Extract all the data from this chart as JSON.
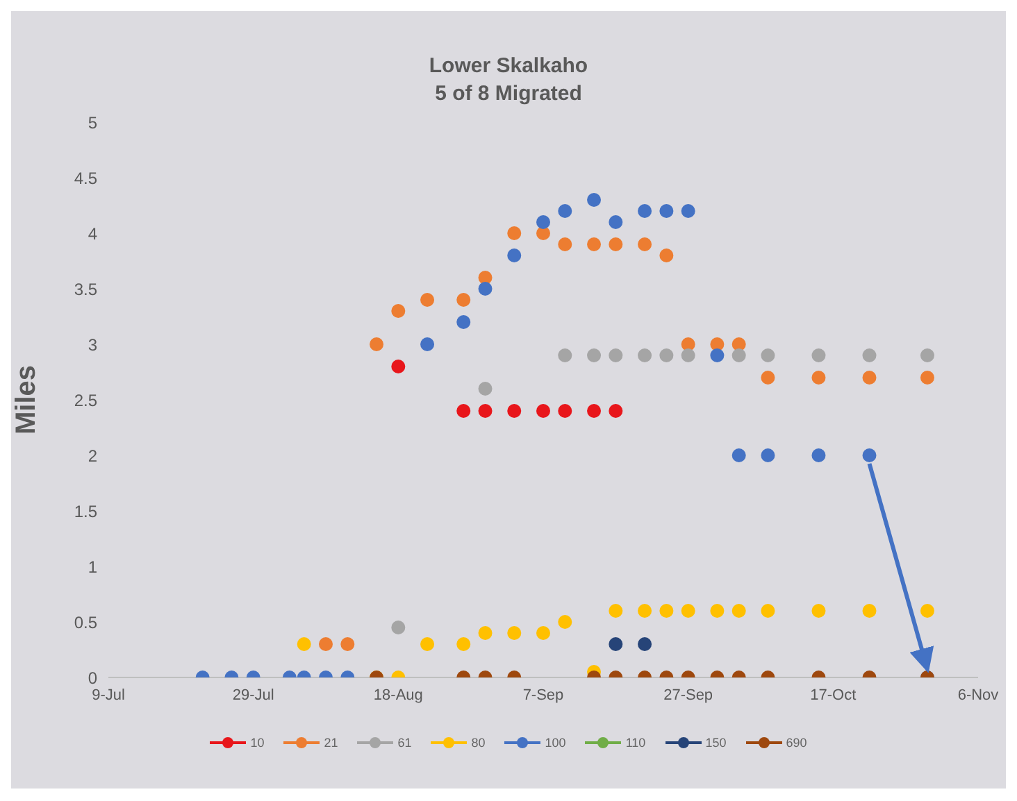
{
  "chart_data": {
    "type": "scatter",
    "title": "Lower Skalkaho",
    "subtitle": "5 of 8 Migrated",
    "ylabel": "Miles",
    "xlim": [
      "--07-09",
      "--11-06"
    ],
    "xticks": [
      {
        "value": "--07-09",
        "label": "9-Jul"
      },
      {
        "value": "--07-29",
        "label": "29-Jul"
      },
      {
        "value": "--08-18",
        "label": "18-Aug"
      },
      {
        "value": "--09-07",
        "label": "7-Sep"
      },
      {
        "value": "--09-27",
        "label": "27-Sep"
      },
      {
        "value": "--10-17",
        "label": "17-Oct"
      },
      {
        "value": "--11-06",
        "label": "6-Nov"
      }
    ],
    "ylim": [
      0,
      5
    ],
    "yticks": [
      0,
      0.5,
      1,
      1.5,
      2,
      2.5,
      3,
      3.5,
      4,
      4.5,
      5
    ],
    "grid": false,
    "legend": "bottom",
    "marker": "circle",
    "series": [
      {
        "name": "10",
        "color": "#e8161b",
        "x": [
          "--08-18",
          "--08-27",
          "--08-30",
          "--09-03",
          "--09-07",
          "--09-10",
          "--09-14",
          "--09-17"
        ],
        "values": [
          2.8,
          2.4,
          2.4,
          2.4,
          2.4,
          2.4,
          2.4,
          2.4
        ]
      },
      {
        "name": "21",
        "color": "#ed7d31",
        "x": [
          "--08-08",
          "--08-11",
          "--08-15",
          "--08-18",
          "--08-22",
          "--08-27",
          "--08-30",
          "--09-03",
          "--09-07",
          "--09-10",
          "--09-14",
          "--09-17",
          "--09-21",
          "--09-24",
          "--09-27",
          "--10-01",
          "--10-04",
          "--10-08",
          "--10-15",
          "--10-22",
          "--10-30"
        ],
        "values": [
          0.3,
          0.3,
          3.0,
          3.3,
          3.4,
          3.4,
          3.6,
          4.0,
          4.0,
          3.9,
          3.9,
          3.9,
          3.9,
          3.8,
          3.0,
          3.0,
          3.0,
          2.7,
          2.7,
          2.7,
          2.7
        ]
      },
      {
        "name": "61",
        "color": "#a5a5a5",
        "x": [
          "--08-18",
          "--08-30",
          "--09-10",
          "--09-14",
          "--09-17",
          "--09-21",
          "--09-24",
          "--09-27",
          "--10-04",
          "--10-08",
          "--10-15",
          "--10-22",
          "--10-30"
        ],
        "values": [
          0.45,
          2.6,
          2.9,
          2.9,
          2.9,
          2.9,
          2.9,
          2.9,
          2.9,
          2.9,
          2.9,
          2.9,
          2.9
        ]
      },
      {
        "name": "80",
        "color": "#ffc000",
        "x": [
          "--08-05",
          "--08-15",
          "--08-18",
          "--08-22",
          "--08-27",
          "--08-30",
          "--09-03",
          "--09-07",
          "--09-10",
          "--09-14",
          "--09-17",
          "--09-21",
          "--09-24",
          "--09-27",
          "--10-01",
          "--10-04",
          "--10-08",
          "--10-15",
          "--10-22",
          "--10-30"
        ],
        "values": [
          0.3,
          0,
          0,
          0.3,
          0.3,
          0.4,
          0.4,
          0.4,
          0.5,
          0.05,
          0.6,
          0.6,
          0.6,
          0.6,
          0.6,
          0.6,
          0.6,
          0.6,
          0.6,
          0.6
        ]
      },
      {
        "name": "100",
        "color": "#4472c4",
        "x": [
          "--07-22",
          "--07-26",
          "--07-29",
          "--08-03",
          "--08-05",
          "--08-08",
          "--08-11",
          "--08-22",
          "--08-27",
          "--08-30",
          "--09-03",
          "--09-07",
          "--09-10",
          "--09-14",
          "--09-17",
          "--09-21",
          "--09-24",
          "--09-27",
          "--10-01",
          "--10-04",
          "--10-08",
          "--10-15",
          "--10-22",
          "--10-30"
        ],
        "values": [
          0,
          0,
          0,
          0,
          0,
          0,
          0,
          3.0,
          3.2,
          3.5,
          3.8,
          4.1,
          4.2,
          4.3,
          4.1,
          4.2,
          4.2,
          4.2,
          2.9,
          2.0,
          2.0,
          2.0,
          2.0,
          0
        ]
      },
      {
        "name": "110",
        "color": "#70ad47"
      },
      {
        "name": "150",
        "color": "#264478",
        "x": [
          "--09-17",
          "--09-21"
        ],
        "values": [
          0.3,
          0.3
        ]
      },
      {
        "name": "690",
        "color": "#9e480e",
        "x": [
          "--08-15",
          "--08-27",
          "--08-30",
          "--09-03",
          "--09-14",
          "--09-17",
          "--09-21",
          "--09-24",
          "--09-27",
          "--10-01",
          "--10-04",
          "--10-08",
          "--10-15",
          "--10-22",
          "--10-30"
        ],
        "values": [
          0,
          0,
          0,
          0,
          0,
          0,
          0,
          0,
          0,
          0,
          0,
          0,
          0,
          0,
          0
        ]
      }
    ]
  }
}
